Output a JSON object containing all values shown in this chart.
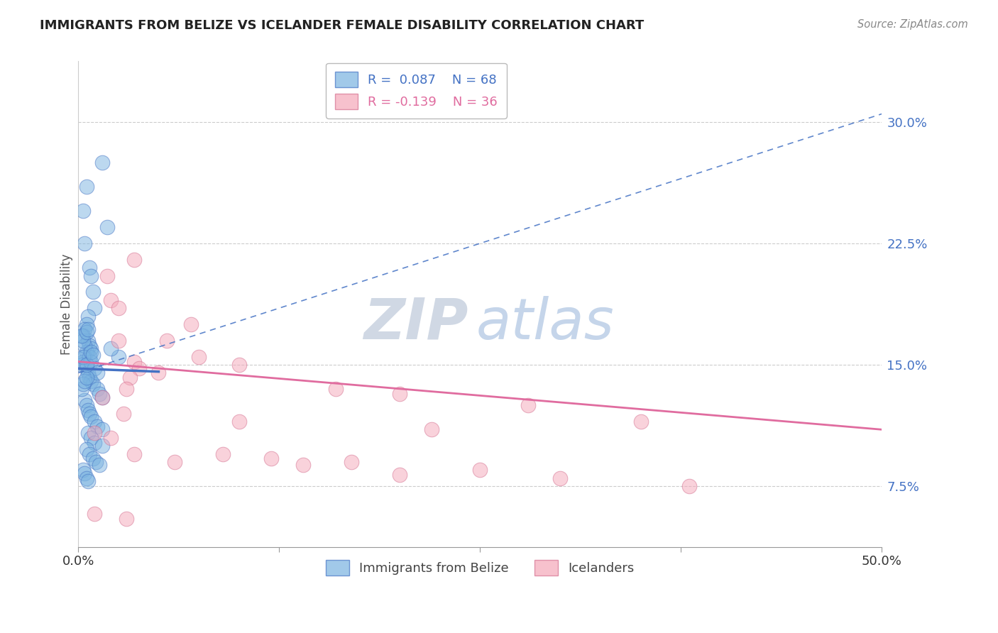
{
  "title": "IMMIGRANTS FROM BELIZE VS ICELANDER FEMALE DISABILITY CORRELATION CHART",
  "source": "Source: ZipAtlas.com",
  "ylabel": "Female Disability",
  "xlim": [
    0.0,
    50.0
  ],
  "ylim": [
    3.75,
    33.75
  ],
  "xtick_labels": [
    "0.0%",
    "",
    "",
    "",
    "50.0%"
  ],
  "xticks": [
    0.0,
    12.5,
    25.0,
    37.5,
    50.0
  ],
  "ytick_labels": [
    "7.5%",
    "15.0%",
    "22.5%",
    "30.0%"
  ],
  "yticks": [
    7.5,
    15.0,
    22.5,
    30.0
  ],
  "grid_color": "#cccccc",
  "background_color": "#ffffff",
  "blue_color": "#7ab3e0",
  "pink_color": "#f4a7b9",
  "blue_line_color": "#4472c4",
  "pink_line_color": "#e06c9f",
  "legend_R_blue": "R =  0.087",
  "legend_N_blue": "N = 68",
  "legend_R_pink": "R = -0.139",
  "legend_N_pink": "N = 36",
  "label_blue": "Immigrants from Belize",
  "label_pink": "Icelanders",
  "blue_trend_x": [
    0.0,
    50.0
  ],
  "blue_trend_y": [
    14.5,
    30.5
  ],
  "pink_trend_x": [
    0.0,
    50.0
  ],
  "pink_trend_y": [
    15.2,
    11.0
  ],
  "blue_scatter_x": [
    1.5,
    0.5,
    0.3,
    1.8,
    0.4,
    0.7,
    0.8,
    0.9,
    1.0,
    0.6,
    0.5,
    0.4,
    0.3,
    0.6,
    0.7,
    0.8,
    0.5,
    0.4,
    0.3,
    0.2,
    0.5,
    0.6,
    0.7,
    0.8,
    0.9,
    1.2,
    1.3,
    1.5,
    0.4,
    0.5,
    0.6,
    0.7,
    0.8,
    1.0,
    1.2,
    1.5,
    0.6,
    0.8,
    1.0,
    1.5,
    0.5,
    0.7,
    0.9,
    1.1,
    1.3,
    0.3,
    0.4,
    0.5,
    0.6,
    0.7,
    0.8,
    1.0,
    1.2,
    0.2,
    0.3,
    0.4,
    0.5,
    0.4,
    0.3,
    0.2,
    0.5,
    0.6,
    0.3,
    0.5,
    2.5,
    2.0,
    0.8,
    0.9
  ],
  "blue_scatter_y": [
    27.5,
    26.0,
    24.5,
    23.5,
    22.5,
    21.0,
    20.5,
    19.5,
    18.5,
    18.0,
    17.5,
    17.2,
    16.8,
    16.5,
    16.2,
    16.0,
    15.8,
    15.5,
    15.2,
    15.0,
    14.8,
    14.5,
    14.2,
    14.0,
    13.8,
    13.5,
    13.2,
    13.0,
    12.8,
    12.5,
    12.2,
    12.0,
    11.8,
    11.5,
    11.2,
    11.0,
    10.8,
    10.5,
    10.2,
    10.0,
    9.8,
    9.5,
    9.2,
    9.0,
    8.8,
    8.5,
    8.3,
    8.0,
    7.8,
    15.5,
    15.2,
    14.8,
    14.5,
    13.5,
    13.8,
    14.0,
    14.2,
    16.2,
    16.5,
    16.8,
    17.0,
    17.2,
    15.5,
    15.0,
    15.5,
    16.0,
    15.8,
    15.6
  ],
  "pink_scatter_x": [
    3.5,
    1.8,
    7.0,
    2.0,
    2.5,
    5.5,
    2.5,
    3.5,
    3.8,
    3.2,
    7.5,
    3.0,
    10.0,
    5.0,
    16.0,
    20.0,
    28.0,
    35.0,
    1.5,
    2.8,
    10.0,
    22.0,
    1.0,
    2.0,
    3.5,
    6.0,
    9.0,
    12.0,
    17.0,
    25.0,
    30.0,
    38.0,
    14.0,
    20.0,
    1.0,
    3.0
  ],
  "pink_scatter_y": [
    21.5,
    20.5,
    17.5,
    19.0,
    18.5,
    16.5,
    16.5,
    15.2,
    14.8,
    14.2,
    15.5,
    13.5,
    15.0,
    14.5,
    13.5,
    13.2,
    12.5,
    11.5,
    13.0,
    12.0,
    11.5,
    11.0,
    10.8,
    10.5,
    9.5,
    9.0,
    9.5,
    9.2,
    9.0,
    8.5,
    8.0,
    7.5,
    8.8,
    8.2,
    5.8,
    5.5
  ]
}
